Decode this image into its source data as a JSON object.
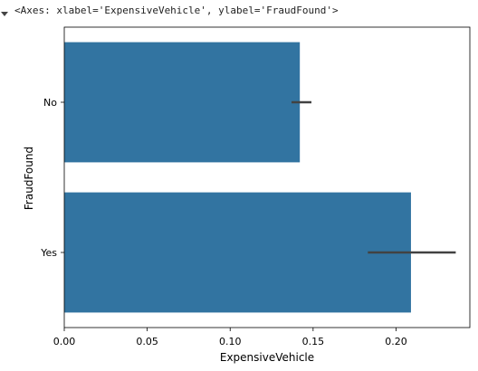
{
  "output": {
    "repr_text": "<Axes: xlabel='ExpensiveVehicle', ylabel='FraudFound'>"
  },
  "chart_data": {
    "type": "bar",
    "orientation": "horizontal",
    "categories": [
      "No",
      "Yes"
    ],
    "values": [
      0.142,
      0.209
    ],
    "error_bars": [
      {
        "low": 0.137,
        "high": 0.149
      },
      {
        "low": 0.183,
        "high": 0.236
      }
    ],
    "xlabel": "ExpensiveVehicle",
    "ylabel": "FraudFound",
    "xlim": [
      0.0,
      0.2445
    ],
    "xticks": [
      {
        "value": 0.0,
        "label": "0.00"
      },
      {
        "value": 0.05,
        "label": "0.05"
      },
      {
        "value": 0.1,
        "label": "0.10"
      },
      {
        "value": 0.15,
        "label": "0.15"
      },
      {
        "value": 0.2,
        "label": "0.20"
      }
    ],
    "grid": false,
    "bar_color": "#3274a1",
    "errorbar_color": "#424242"
  }
}
